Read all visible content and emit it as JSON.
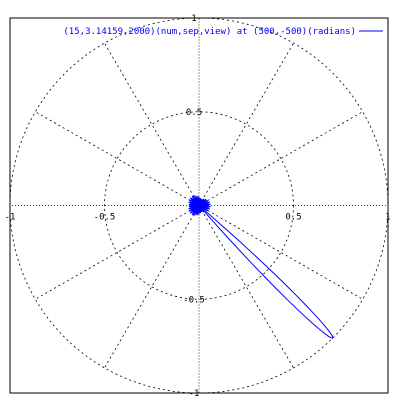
{
  "chart_data": {
    "type": "line",
    "subtype": "polar",
    "title": "",
    "legend": {
      "position": "top-right",
      "entries": [
        {
          "label": "(15,3.14159,2000)(num,sep,view) at (500,-500)(radians)",
          "color": "#0000ff"
        }
      ]
    },
    "axes": {
      "xlim": [
        -1,
        1
      ],
      "ylim": [
        -1,
        1
      ],
      "x_ticks": [
        "-1",
        "-0.5",
        "0.5",
        "1"
      ],
      "x_tick_values": [
        -1,
        -0.5,
        0.5,
        1
      ],
      "y_ticks": [
        "1",
        "0.5",
        "-0.5",
        "-1"
      ],
      "y_tick_values": [
        1,
        0.5,
        -0.5,
        -1
      ],
      "grid": true,
      "grid_circles_r": [
        0.5,
        1
      ],
      "grid_spokes_deg": [
        0,
        30,
        60,
        90,
        120,
        150,
        180,
        210,
        240,
        270,
        300,
        330
      ]
    },
    "colors": {
      "series": "#0000ff",
      "grid": "#000000",
      "frame": "#000000"
    },
    "series": [
      {
        "name": "(15,3.14159,2000)(num,sep,view) at (500,-500)(radians)",
        "main_lobe": {
          "direction_rad": -0.785,
          "peak_r": 1.0,
          "half_width_rad": 0.07
        },
        "sidelobes": {
          "count": 15,
          "level_r": 0.06
        }
      }
    ]
  }
}
